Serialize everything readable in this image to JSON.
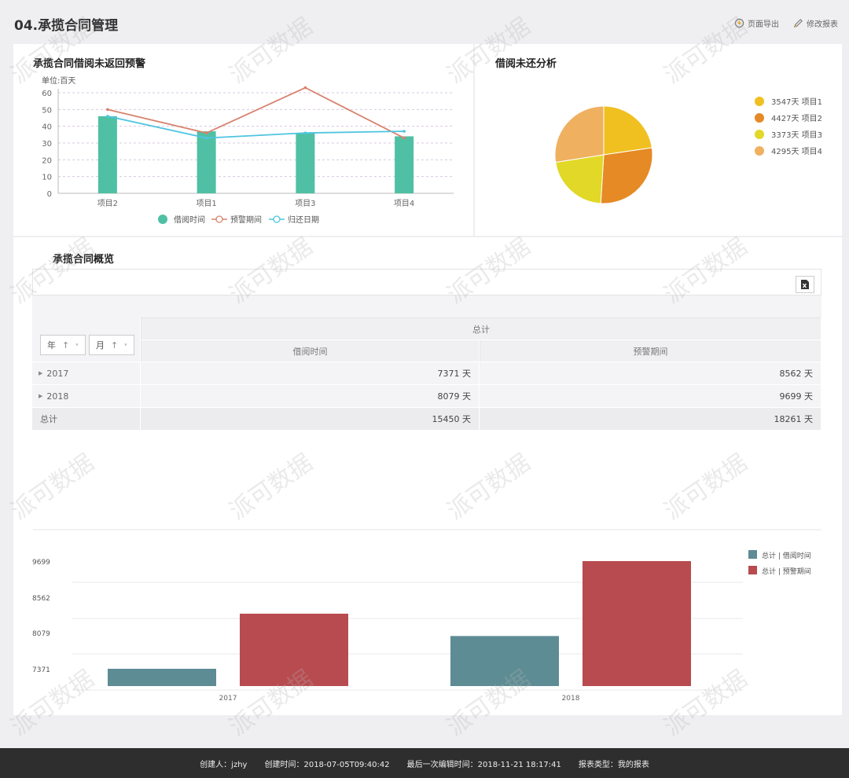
{
  "header": {
    "title": "04.承揽合同管理",
    "export_label": "页面导出",
    "edit_label": "修改报表"
  },
  "line_panel": {
    "title": "承揽合同借阅未返回预警",
    "unit": "单位:百天"
  },
  "pie_panel": {
    "title": "借阅未还分析"
  },
  "overview_panel": {
    "title": "承揽合同概览"
  },
  "table": {
    "filters": [
      {
        "label": "年",
        "sort": "↑"
      },
      {
        "label": "月",
        "sort": "↑"
      }
    ],
    "group_header": "总计",
    "columns": [
      "借阅时间",
      "预警期间"
    ],
    "rows": [
      {
        "label": "2017",
        "values": [
          "7371 天",
          "8562 天"
        ]
      },
      {
        "label": "2018",
        "values": [
          "8079 天",
          "9699 天"
        ]
      }
    ],
    "total": {
      "label": "总计",
      "values": [
        "15450 天",
        "18261 天"
      ]
    }
  },
  "watermark": "派可数据",
  "footer": {
    "creator": "创建人：jzhy",
    "created": "创建时间：2018-07-05T09:40:42",
    "edited": "最后一次编辑时间：2018-11-21 18:17:41",
    "type": "报表类型：我的报表"
  },
  "chart_data": [
    {
      "type": "bar",
      "categories": [
        "项目2",
        "项目1",
        "项目3",
        "项目4"
      ],
      "series": [
        {
          "name": "借阅时间",
          "type": "bar",
          "values": [
            46,
            37,
            36,
            34
          ],
          "color": "#4fc0a4"
        },
        {
          "name": "预警期间",
          "type": "line",
          "values": [
            50,
            36,
            63,
            33
          ],
          "color": "#d8826e"
        },
        {
          "name": "归还日期",
          "type": "line",
          "values": [
            46,
            33,
            36,
            37
          ],
          "color": "#4ec5e0"
        }
      ],
      "ylim": [
        0,
        60
      ],
      "yticks": [
        0,
        10,
        20,
        30,
        40,
        50,
        60
      ],
      "ylabel": "单位:百天",
      "legend": "bottom",
      "grid": true
    },
    {
      "type": "pie",
      "labels": [
        "项目1",
        "项目2",
        "项目3",
        "项目4"
      ],
      "legend_labels": [
        "3547天  项目1",
        "4427天  项目2",
        "3373天  项目3",
        "4295天  项目4"
      ],
      "values": [
        3547,
        4427,
        3373,
        4295
      ],
      "colors": [
        "#f0c020",
        "#e58a25",
        "#e2d828",
        "#efb060"
      ],
      "legend": "right"
    },
    {
      "type": "bar",
      "categories": [
        "2017",
        "2018"
      ],
      "series": [
        {
          "name": "总计 | 借阅时间",
          "values": [
            7371,
            8079
          ],
          "color": "#5e8c94"
        },
        {
          "name": "总计 | 预警期间",
          "values": [
            8562,
            9699
          ],
          "color": "#b84b4f"
        }
      ],
      "yticks": [
        7371,
        8079,
        8562,
        9699
      ],
      "legend": "top-right",
      "grid": true
    }
  ]
}
